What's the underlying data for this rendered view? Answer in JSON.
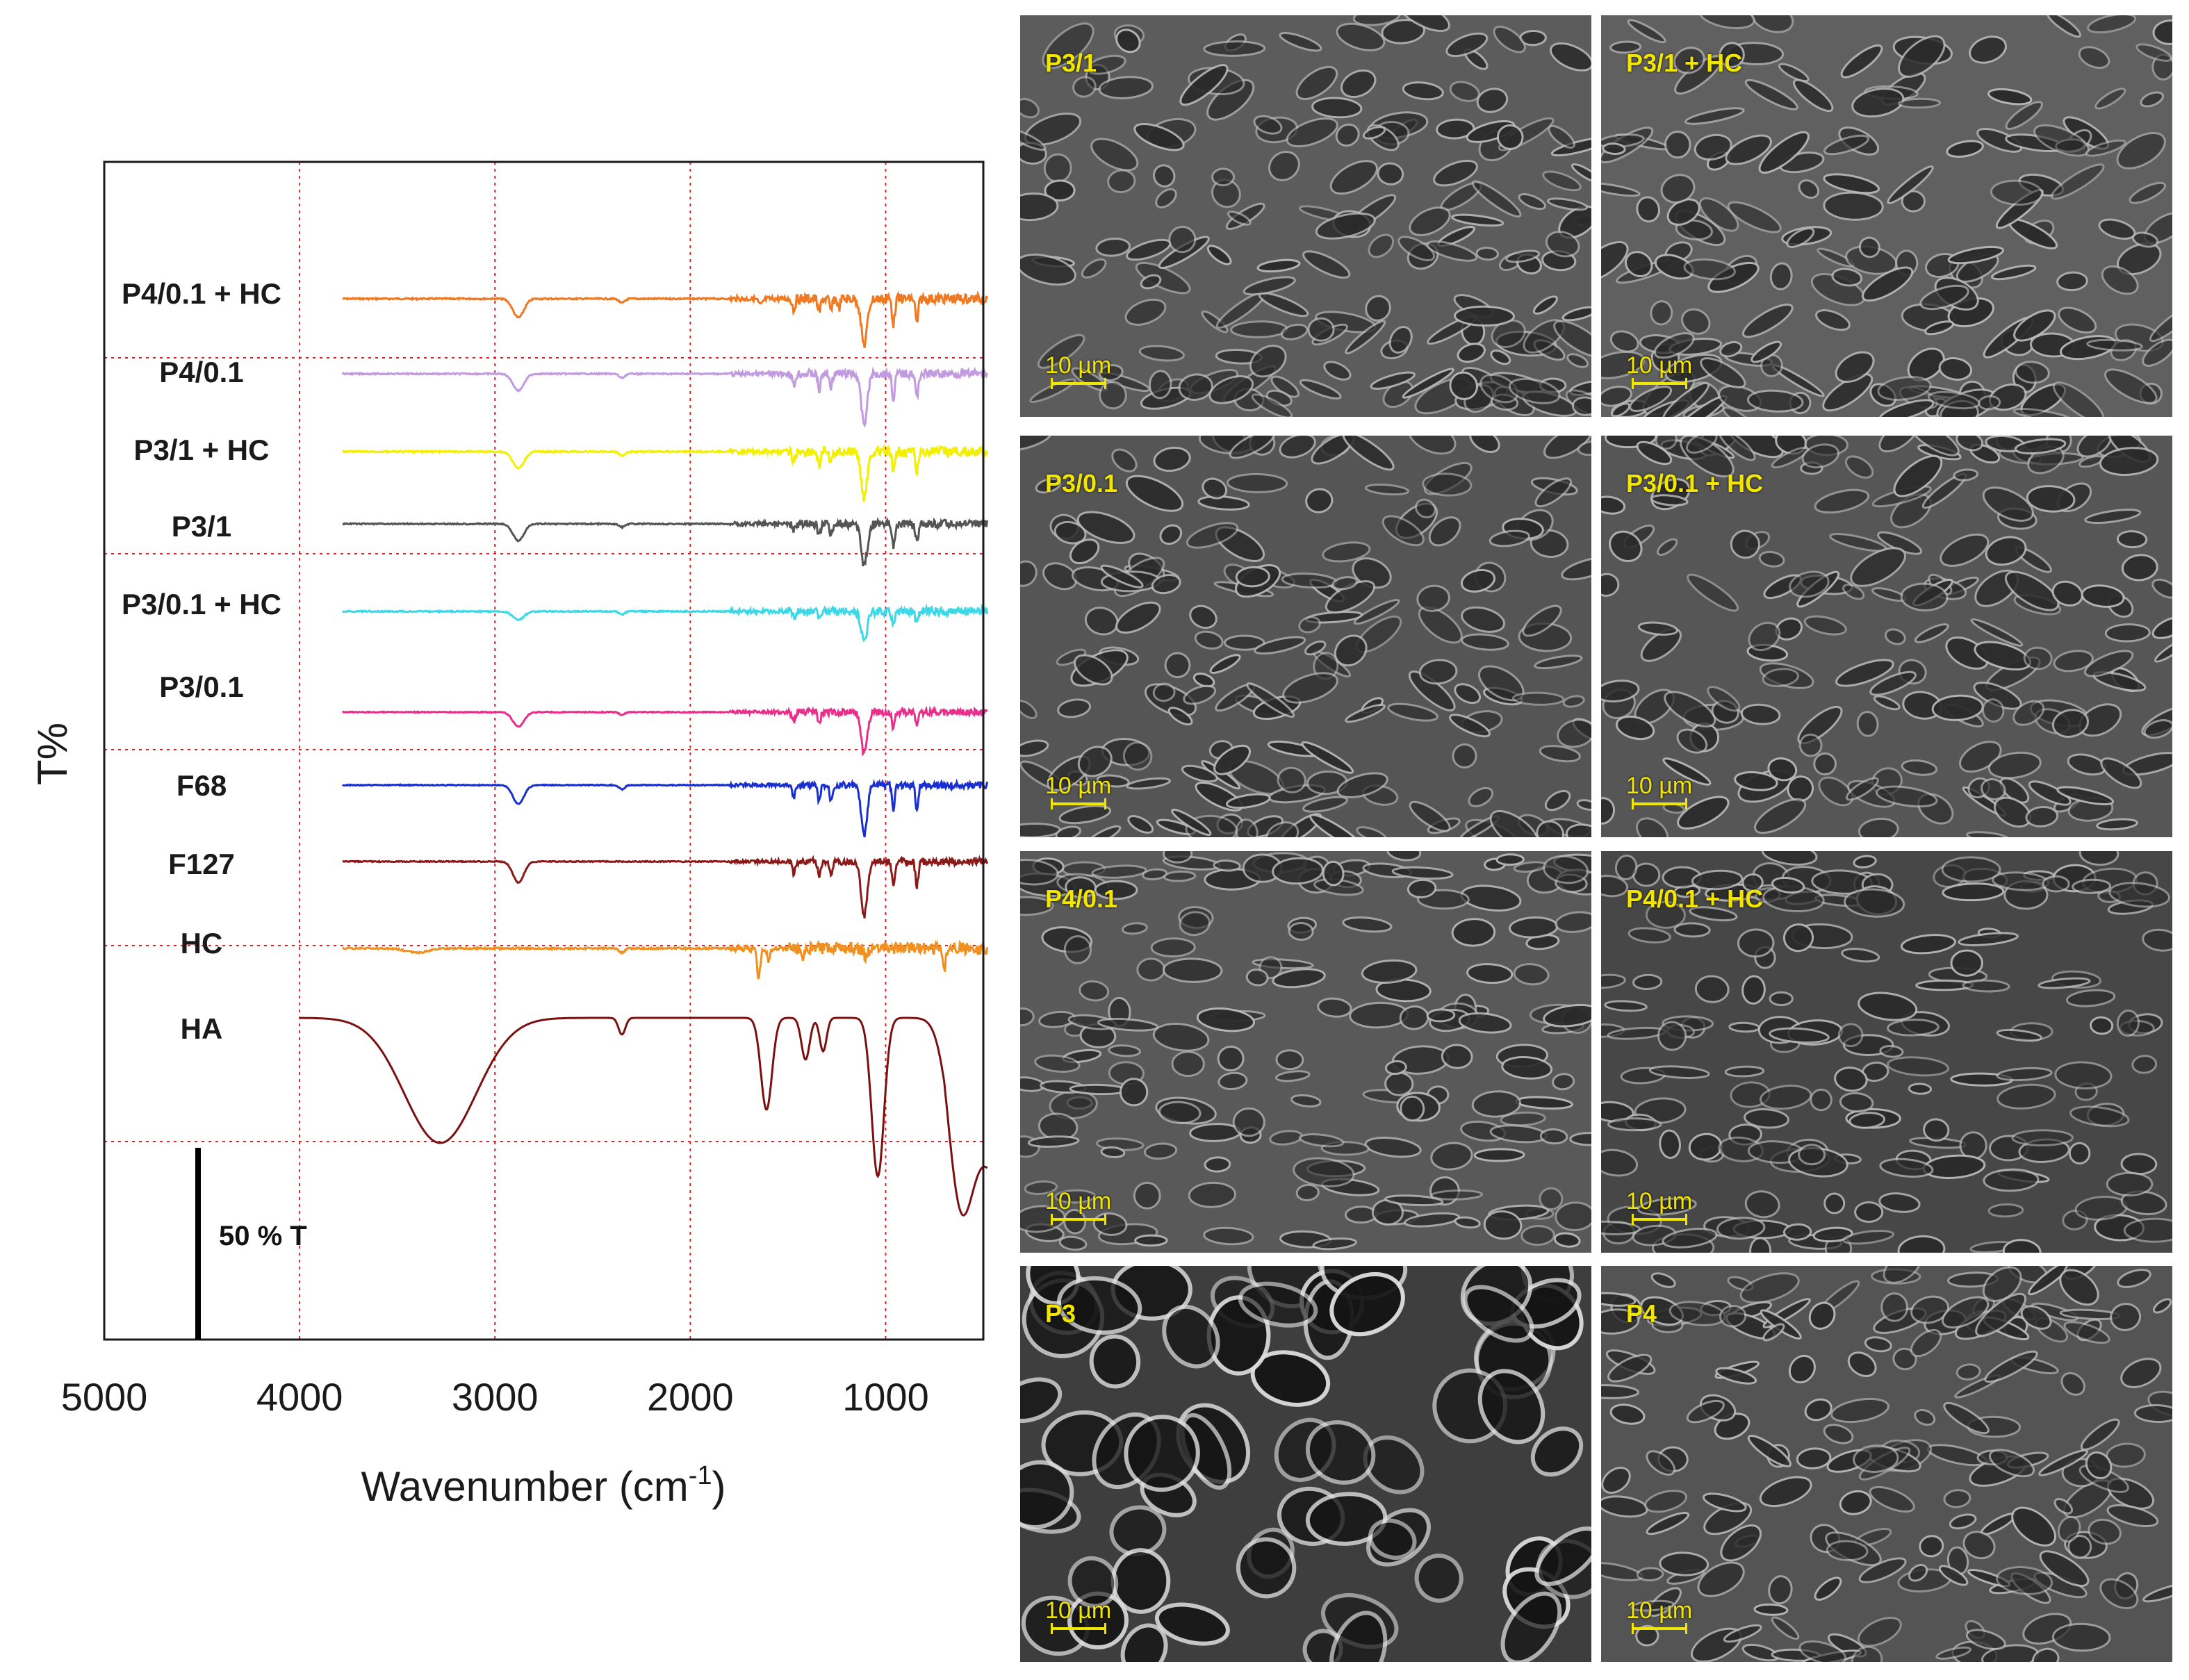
{
  "chart_data": {
    "type": "line",
    "title": "",
    "xlabel": "Wavenumber (cm",
    "xlabel_superscript": "-1",
    "xlabel_close": ")",
    "ylabel": "T%",
    "xlim": [
      5000,
      500
    ],
    "x_ticks": [
      "5000",
      "4000",
      "3000",
      "2000",
      "1000"
    ],
    "grid": true,
    "scale_bar_label": "50 % T",
    "series": [
      {
        "name": "P4/0.1 + HC",
        "color": "#f07820",
        "baseline": 10.0,
        "bands": [
          [
            2880,
            0.45,
            40
          ],
          [
            2350,
            0.1,
            20
          ],
          [
            1470,
            0.25,
            10
          ],
          [
            1340,
            0.35,
            10
          ],
          [
            1280,
            0.3,
            10
          ],
          [
            1240,
            0.25,
            8
          ],
          [
            1110,
            1.1,
            22
          ],
          [
            960,
            0.6,
            10
          ],
          [
            840,
            0.6,
            10
          ],
          [
            1640,
            0.15,
            15
          ]
        ],
        "noise": 0.06
      },
      {
        "name": "P4/0.1",
        "color": "#c29ae0",
        "baseline": 9.2,
        "bands": [
          [
            2880,
            0.4,
            40
          ],
          [
            2350,
            0.1,
            20
          ],
          [
            1470,
            0.3,
            10
          ],
          [
            1340,
            0.4,
            10
          ],
          [
            1280,
            0.3,
            10
          ],
          [
            1110,
            1.2,
            22
          ],
          [
            960,
            0.6,
            10
          ],
          [
            840,
            0.6,
            10
          ]
        ],
        "noise": 0.05
      },
      {
        "name": "P3/1 + HC",
        "color": "#f2f000",
        "baseline": 8.4,
        "bands": [
          [
            2880,
            0.4,
            40
          ],
          [
            2350,
            0.1,
            20
          ],
          [
            1470,
            0.25,
            10
          ],
          [
            1340,
            0.35,
            10
          ],
          [
            1280,
            0.3,
            10
          ],
          [
            1110,
            1.1,
            22
          ],
          [
            960,
            0.55,
            10
          ],
          [
            840,
            0.5,
            10
          ]
        ],
        "noise": 0.06
      },
      {
        "name": "P3/1",
        "color": "#555555",
        "baseline": 7.6,
        "bands": [
          [
            2880,
            0.4,
            40
          ],
          [
            2350,
            0.08,
            20
          ],
          [
            1470,
            0.2,
            10
          ],
          [
            1340,
            0.3,
            10
          ],
          [
            1280,
            0.25,
            10
          ],
          [
            1110,
            1.0,
            22
          ],
          [
            960,
            0.5,
            10
          ],
          [
            840,
            0.45,
            10
          ]
        ],
        "noise": 0.05
      },
      {
        "name": "P3/0.1 + HC",
        "color": "#3dd8e8",
        "baseline": 6.8,
        "bands": [
          [
            2880,
            0.2,
            40
          ],
          [
            2350,
            0.08,
            20
          ],
          [
            1470,
            0.15,
            10
          ],
          [
            1340,
            0.2,
            10
          ],
          [
            1110,
            0.7,
            22
          ],
          [
            960,
            0.35,
            10
          ],
          [
            840,
            0.3,
            10
          ]
        ],
        "noise": 0.05
      },
      {
        "name": "P3/0.1",
        "color": "#e8308a",
        "baseline": 6.0,
        "bands": [
          [
            2880,
            0.35,
            40
          ],
          [
            2350,
            0.06,
            20
          ],
          [
            1470,
            0.2,
            10
          ],
          [
            1340,
            0.3,
            10
          ],
          [
            1110,
            1.0,
            22
          ],
          [
            960,
            0.4,
            10
          ],
          [
            840,
            0.35,
            10
          ]
        ],
        "noise": 0.04
      },
      {
        "name": "F68",
        "color": "#1a2fd0",
        "baseline": 5.2,
        "bands": [
          [
            2880,
            0.45,
            40
          ],
          [
            2350,
            0.1,
            20
          ],
          [
            1470,
            0.3,
            10
          ],
          [
            1340,
            0.4,
            10
          ],
          [
            1280,
            0.35,
            10
          ],
          [
            1110,
            1.2,
            22
          ],
          [
            960,
            0.6,
            10
          ],
          [
            840,
            0.6,
            10
          ]
        ],
        "noise": 0.04
      },
      {
        "name": "F127",
        "color": "#8a1a1a",
        "baseline": 4.4,
        "bands": [
          [
            2880,
            0.5,
            40
          ],
          [
            1470,
            0.3,
            10
          ],
          [
            1340,
            0.4,
            10
          ],
          [
            1280,
            0.35,
            10
          ],
          [
            1110,
            1.3,
            22
          ],
          [
            960,
            0.6,
            10
          ],
          [
            840,
            0.6,
            10
          ]
        ],
        "noise": 0.04
      },
      {
        "name": "HC",
        "color": "#f09020",
        "baseline": 3.5,
        "bands": [
          [
            3400,
            0.1,
            80
          ],
          [
            2350,
            0.1,
            20
          ],
          [
            1650,
            0.7,
            12
          ],
          [
            1600,
            0.3,
            10
          ],
          [
            1420,
            0.2,
            10
          ],
          [
            1100,
            0.2,
            15
          ],
          [
            700,
            0.6,
            10
          ]
        ],
        "noise": 0.07
      },
      {
        "name": "HA",
        "color": "#7a1010",
        "baseline": 2.7,
        "bands": [
          [
            3280,
            3.0,
            260
          ],
          [
            2350,
            0.4,
            25
          ],
          [
            1610,
            2.2,
            40
          ],
          [
            1410,
            1.0,
            30
          ],
          [
            1320,
            0.8,
            25
          ],
          [
            1040,
            3.8,
            45
          ],
          [
            620,
            3.4,
            90
          ]
        ],
        "noise": 0.0
      }
    ]
  },
  "sem_panels": [
    {
      "title": "P3/1",
      "scale": "10 µm",
      "tone": "#5c5c5c"
    },
    {
      "title": "P3/1 + HC",
      "scale": "10 µm",
      "tone": "#606060"
    },
    {
      "title": "P3/0.1",
      "scale": "10 µm",
      "tone": "#555555"
    },
    {
      "title": "P3/0.1 + HC",
      "scale": "10 µm",
      "tone": "#565656"
    },
    {
      "title": "P4/0.1",
      "scale": "10 µm",
      "tone": "#595959"
    },
    {
      "title": "P4/0.1 + HC",
      "scale": "10 µm",
      "tone": "#474747"
    },
    {
      "title": "P3",
      "scale": "10 µm",
      "tone": "#3e3e3e"
    },
    {
      "title": "P4",
      "scale": "10 µm",
      "tone": "#545454"
    }
  ]
}
